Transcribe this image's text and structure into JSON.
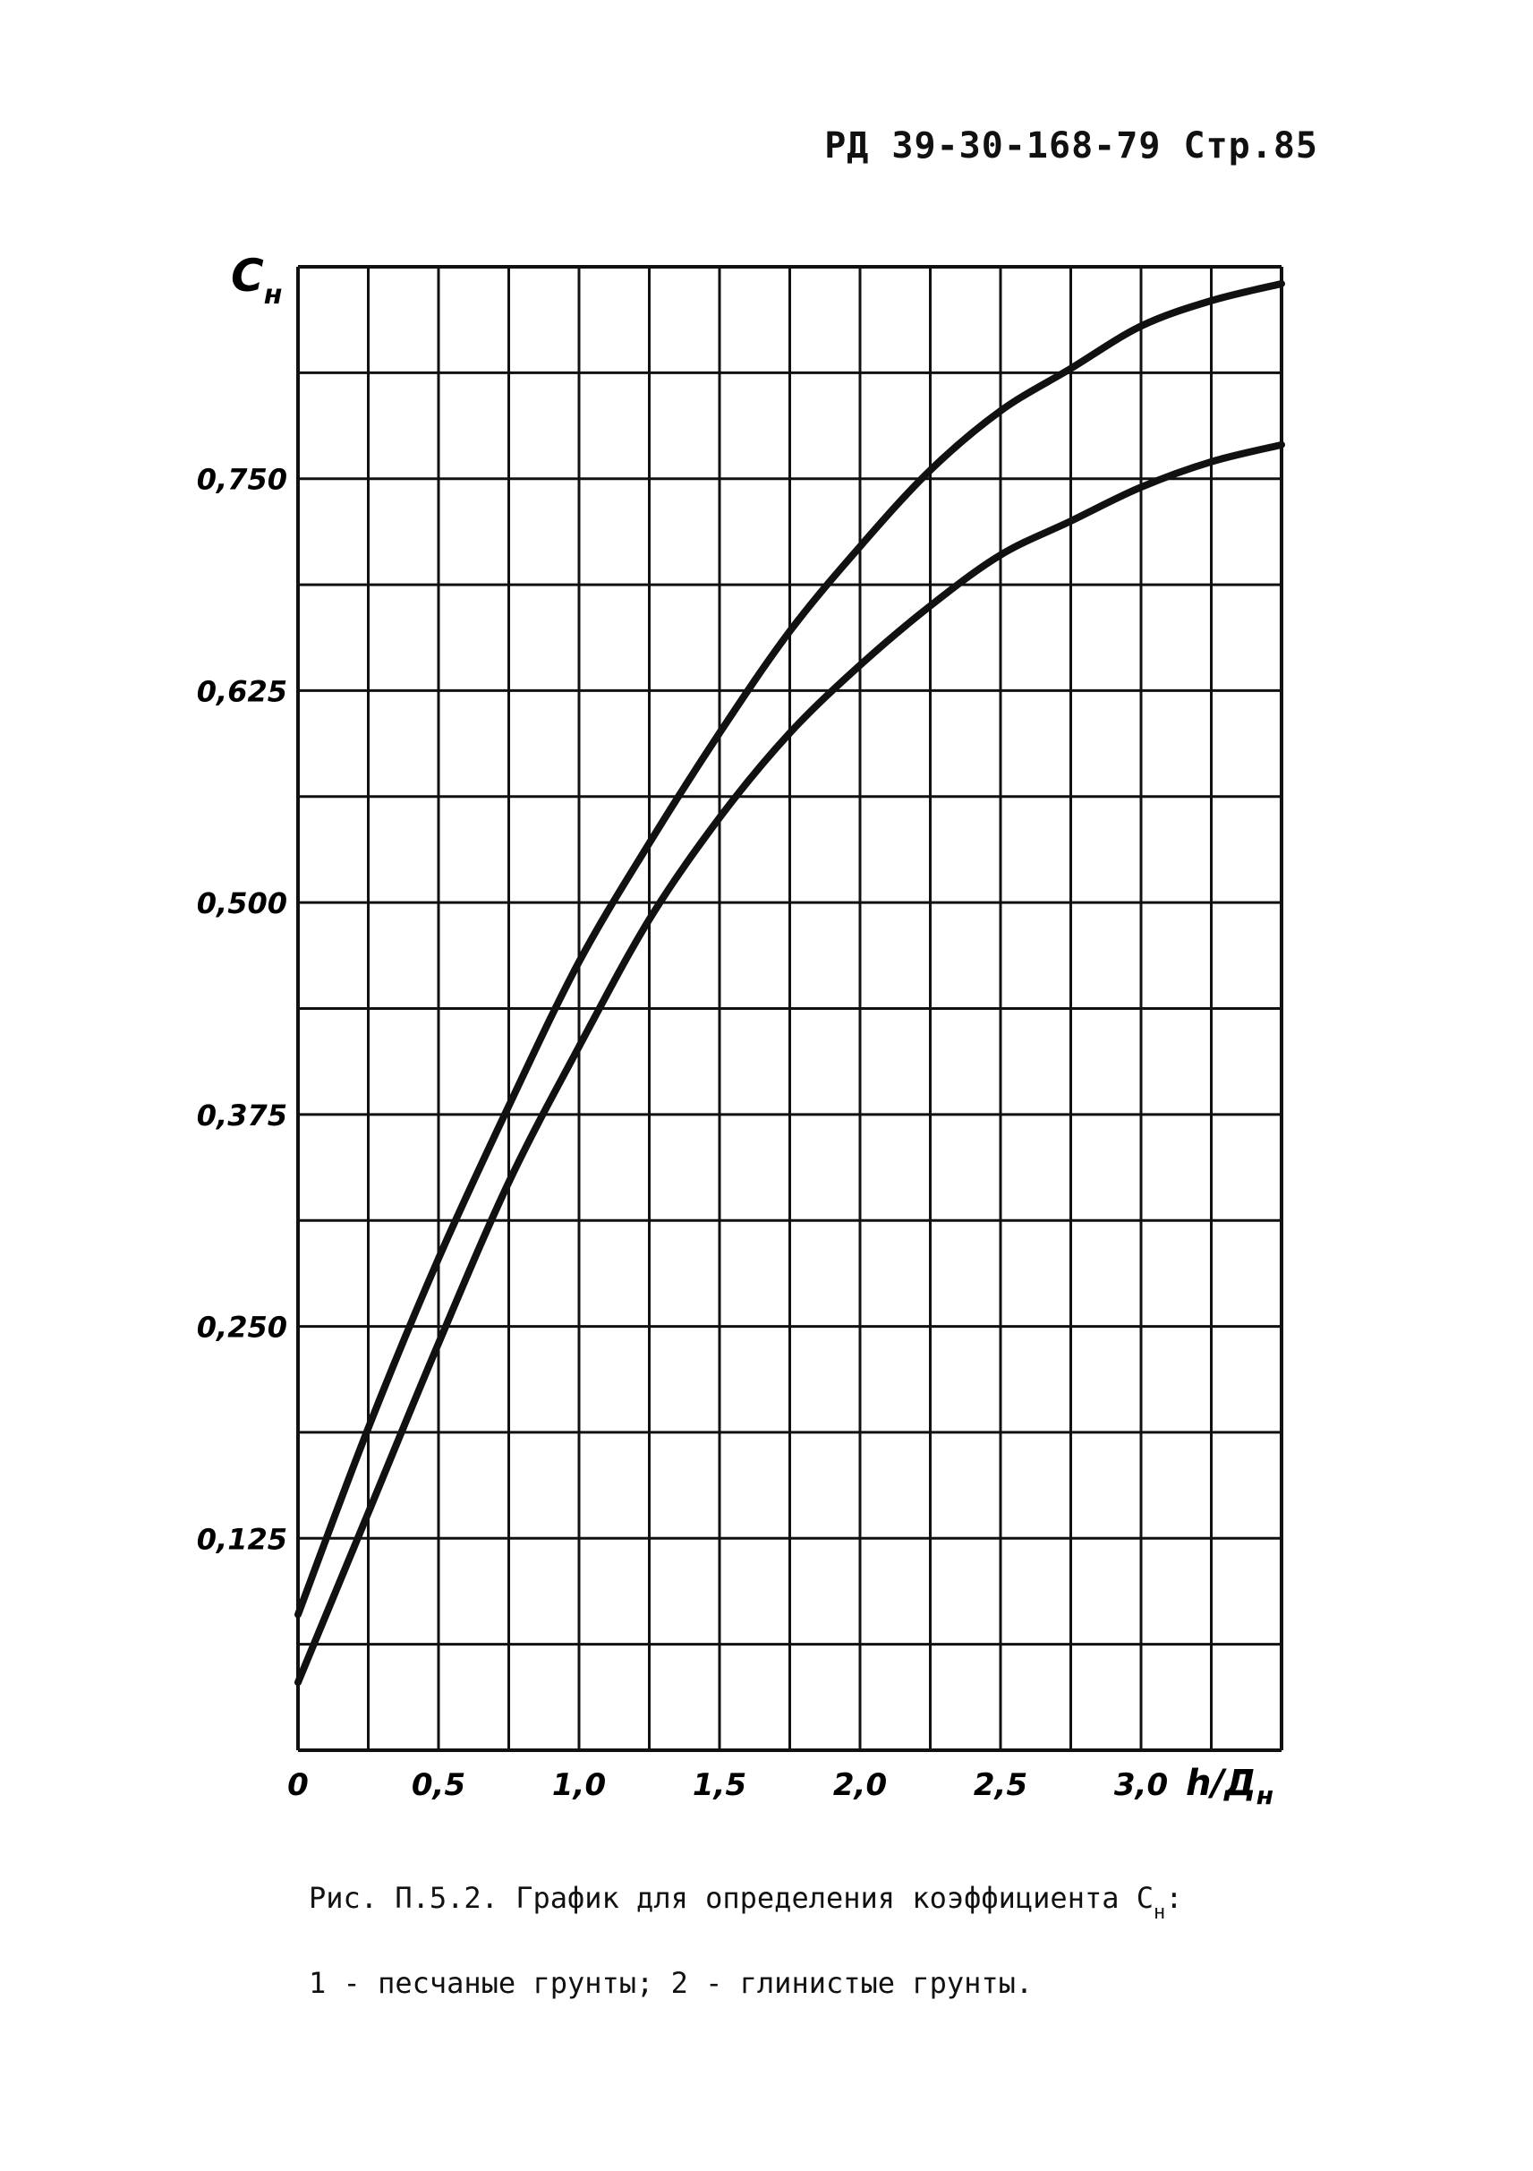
{
  "page": {
    "header": "РД 39-30-168-79  Стр.85",
    "caption_line1_prefix": "Рис. П.5.2. График для определения коэффициента  С",
    "caption_line1_sub": "н",
    "caption_line1_suffix": ":",
    "caption_line2": "1 - песчаные грунты;  2 - глинистые грунты."
  },
  "chart_data": {
    "type": "line",
    "ylabel_main": "C",
    "ylabel_sub": "н",
    "xlabel_main": "h/Д",
    "xlabel_sub": "н",
    "xlim": [
      0,
      3.5
    ],
    "ylim": [
      0,
      0.875
    ],
    "x_ticks": [
      "0",
      "0,5",
      "1,0",
      "1,5",
      "2,0",
      "2,5",
      "3,0"
    ],
    "x_tick_values": [
      0,
      0.5,
      1.0,
      1.5,
      2.0,
      2.5,
      3.0
    ],
    "y_ticks": [
      "0,125",
      "0,250",
      "0,375",
      "0,500",
      "0,625",
      "0,750"
    ],
    "y_tick_values": [
      0.125,
      0.25,
      0.375,
      0.5,
      0.625,
      0.75
    ],
    "grid": true,
    "grid_x_step": 0.25,
    "grid_y_step": 0.0625,
    "colors": {
      "line": "#111111",
      "grid": "#111111"
    },
    "series": [
      {
        "x": [
          0,
          0.25,
          0.5,
          0.75,
          1.0,
          1.25,
          1.5,
          1.75,
          2.0,
          2.25,
          2.5,
          2.75,
          3.0,
          3.25,
          3.5
        ],
        "y": [
          0.08,
          0.19,
          0.29,
          0.38,
          0.465,
          0.535,
          0.6,
          0.66,
          0.71,
          0.755,
          0.79,
          0.815,
          0.84,
          0.855,
          0.865
        ]
      },
      {
        "x": [
          0,
          0.25,
          0.5,
          0.75,
          1.0,
          1.25,
          1.5,
          1.75,
          2.0,
          2.25,
          2.5,
          2.75,
          3.0,
          3.25,
          3.5
        ],
        "y": [
          0.04,
          0.14,
          0.24,
          0.335,
          0.415,
          0.49,
          0.55,
          0.6,
          0.64,
          0.675,
          0.705,
          0.725,
          0.745,
          0.76,
          0.77
        ]
      }
    ]
  }
}
